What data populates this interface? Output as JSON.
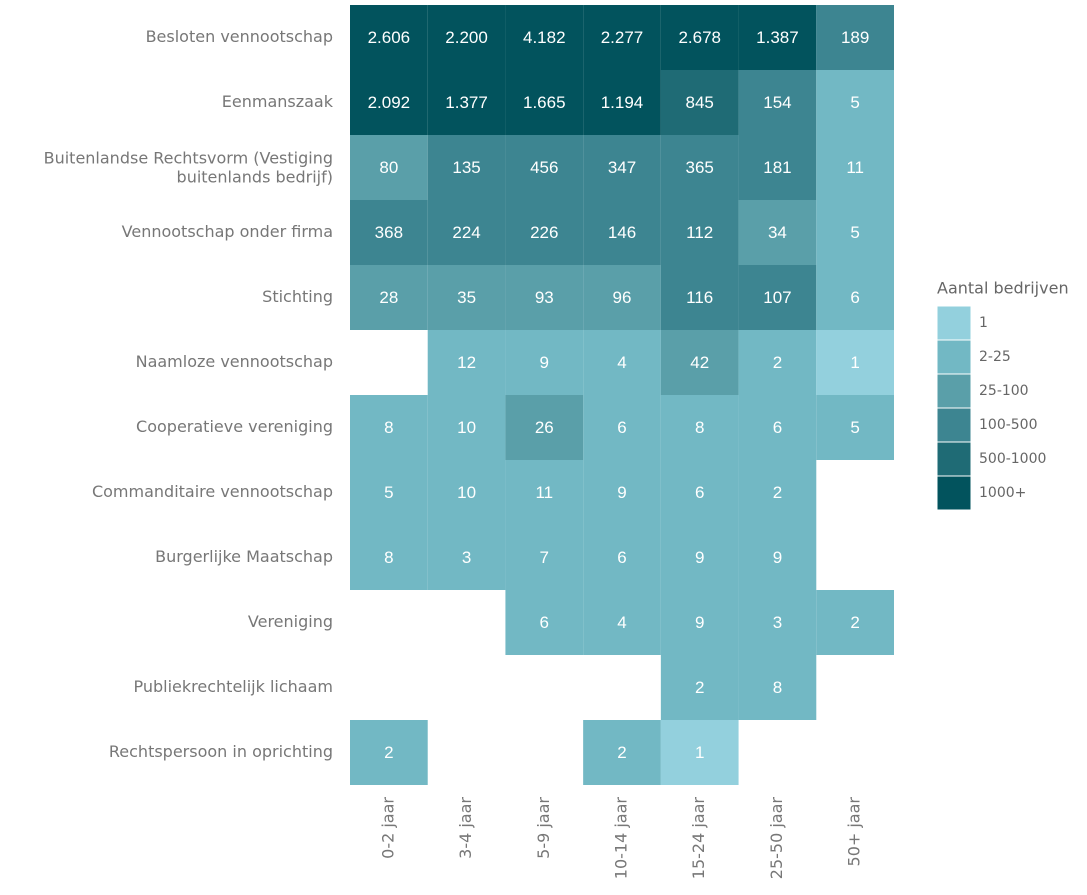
{
  "chart_data": {
    "type": "heatmap",
    "rows": [
      "Besloten vennootschap",
      "Eenmanszaak",
      "Buitenlandse Rechtsvorm (Vestiging buitenlands bedrijf)",
      "Vennootschap onder firma",
      "Stichting",
      "Naamloze vennootschap",
      "Cooperatieve vereniging",
      "Commanditaire vennootschap",
      "Burgerlijke Maatschap",
      "Vereniging",
      "Publiekrechtelijk lichaam",
      "Rechtspersoon in oprichting"
    ],
    "columns": [
      "0-2 jaar",
      "3-4 jaar",
      "5-9 jaar",
      "10-14 jaar",
      "15-24 jaar",
      "25-50 jaar",
      "50+ jaar"
    ],
    "values": [
      [
        2606,
        2200,
        4182,
        2277,
        2678,
        1387,
        189
      ],
      [
        2092,
        1377,
        1665,
        1194,
        845,
        154,
        5
      ],
      [
        80,
        135,
        456,
        347,
        365,
        181,
        11
      ],
      [
        368,
        224,
        226,
        146,
        112,
        34,
        5
      ],
      [
        28,
        35,
        93,
        96,
        116,
        107,
        6
      ],
      [
        null,
        12,
        9,
        4,
        42,
        2,
        1
      ],
      [
        8,
        10,
        26,
        6,
        8,
        6,
        5
      ],
      [
        5,
        10,
        11,
        9,
        6,
        2,
        null
      ],
      [
        8,
        3,
        7,
        6,
        9,
        9,
        null
      ],
      [
        null,
        null,
        6,
        4,
        9,
        3,
        2
      ],
      [
        null,
        null,
        null,
        null,
        2,
        8,
        null
      ],
      [
        2,
        null,
        null,
        2,
        1,
        null,
        null
      ]
    ],
    "value_labels": [
      [
        "2.606",
        "2.200",
        "4.182",
        "2.277",
        "2.678",
        "1.387",
        "189"
      ],
      [
        "2.092",
        "1.377",
        "1.665",
        "1.194",
        "845",
        "154",
        "5"
      ],
      [
        "80",
        "135",
        "456",
        "347",
        "365",
        "181",
        "11"
      ],
      [
        "368",
        "224",
        "226",
        "146",
        "112",
        "34",
        "5"
      ],
      [
        "28",
        "35",
        "93",
        "96",
        "116",
        "107",
        "6"
      ],
      [
        null,
        "12",
        "9",
        "4",
        "42",
        "2",
        "1"
      ],
      [
        "8",
        "10",
        "26",
        "6",
        "8",
        "6",
        "5"
      ],
      [
        "5",
        "10",
        "11",
        "9",
        "6",
        "2",
        null
      ],
      [
        "8",
        "3",
        "7",
        "6",
        "9",
        "9",
        null
      ],
      [
        null,
        null,
        "6",
        "4",
        "9",
        "3",
        "2"
      ],
      [
        null,
        null,
        null,
        null,
        "2",
        "8",
        null
      ],
      [
        "2",
        null,
        null,
        "2",
        "1",
        null,
        null
      ]
    ],
    "legend": {
      "title": "Aantal bedrijven",
      "classes": [
        {
          "label": "1",
          "color": "#93d0dd"
        },
        {
          "label": "2-25",
          "color": "#72b8c4"
        },
        {
          "label": "25-100",
          "color": "#5a9fa9"
        },
        {
          "label": "100-500",
          "color": "#3d8591"
        },
        {
          "label": "500-1000",
          "color": "#1f6b75"
        },
        {
          "label": "1000+",
          "color": "#02535d"
        }
      ]
    }
  }
}
